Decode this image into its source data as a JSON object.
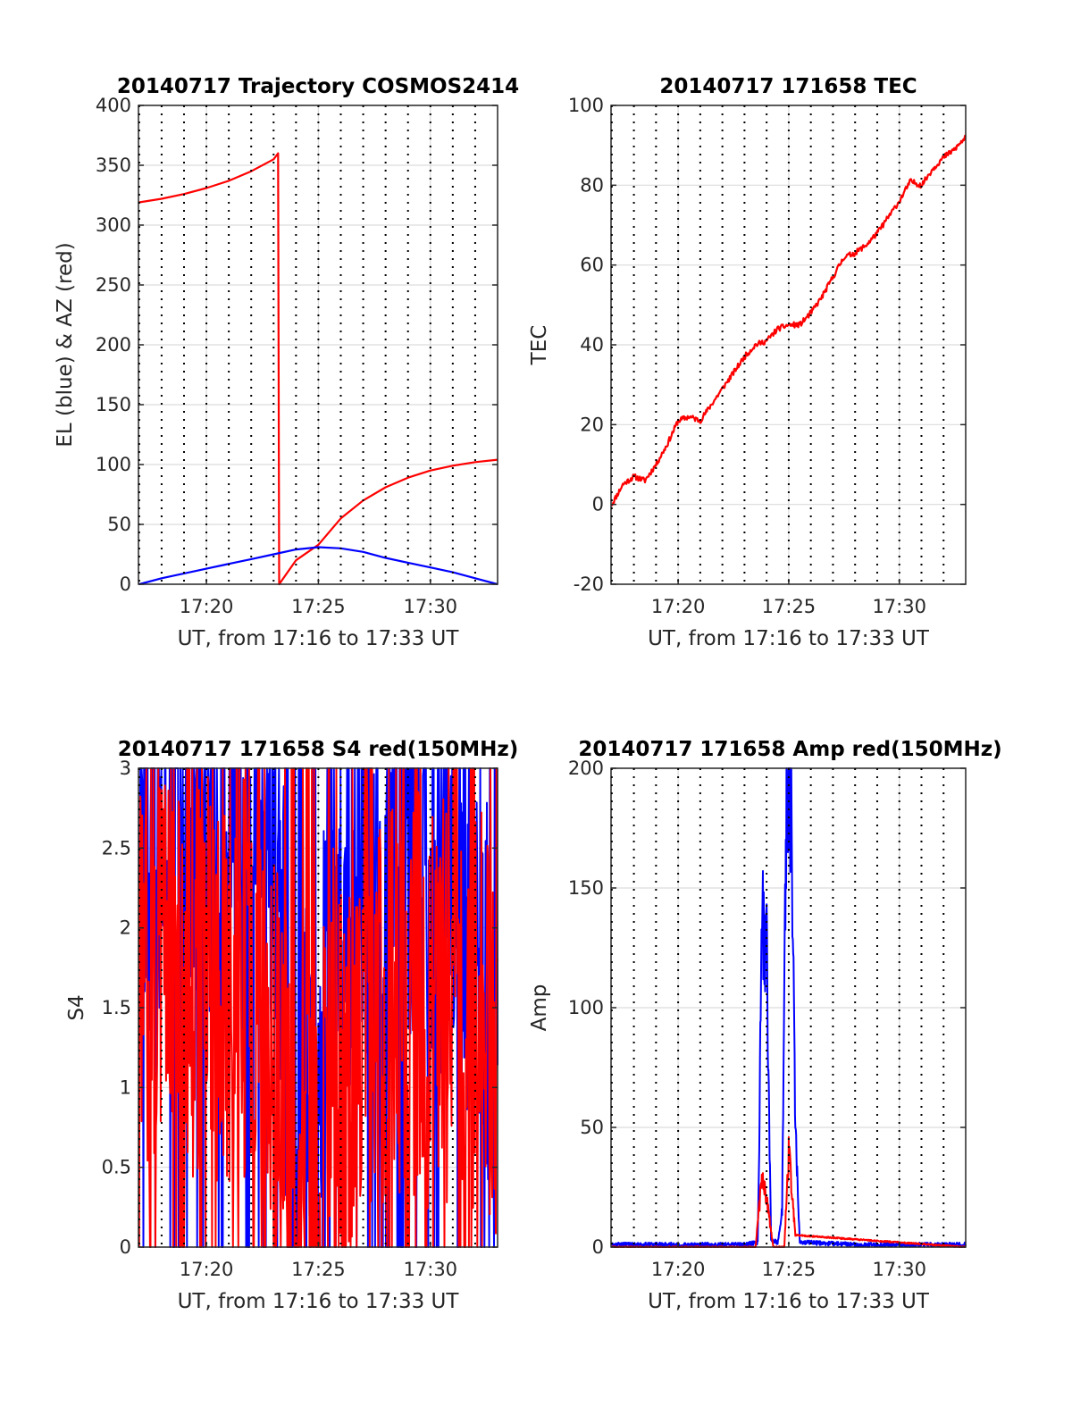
{
  "chart_data": [
    {
      "type": "line",
      "title": "20140717 Trajectory COSMOS2414",
      "xlabel": "UT, from 17:16 to 17:33 UT",
      "ylabel": "EL (blue) & AZ (red)",
      "xlim": [
        "17:16:58",
        "17:33:00"
      ],
      "ylim": [
        0,
        400
      ],
      "xticks": [
        "17:20",
        "17:25",
        "17:30"
      ],
      "yticks": [
        0,
        50,
        100,
        150,
        200,
        250,
        300,
        350,
        400
      ],
      "grid": true,
      "series": [
        {
          "color": "#ff0000",
          "x": [
            "17:17",
            "17:18",
            "17:19",
            "17:20",
            "17:21",
            "17:22",
            "17:23",
            "17:23.2",
            "17:23.25",
            "17:24",
            "17:25",
            "17:26",
            "17:27",
            "17:28",
            "17:29",
            "17:30",
            "17:31",
            "17:32",
            "17:33"
          ],
          "y": [
            319,
            322,
            326,
            331,
            337,
            345,
            355,
            360,
            0,
            20,
            33,
            55,
            70,
            81,
            89,
            95,
            99,
            102,
            104
          ]
        },
        {
          "color": "#0000ff",
          "x": [
            "17:17",
            "17:18",
            "17:19",
            "17:20",
            "17:21",
            "17:22",
            "17:23",
            "17:24",
            "17:25",
            "17:26",
            "17:27",
            "17:28",
            "17:29",
            "17:30",
            "17:31",
            "17:32",
            "17:33"
          ],
          "y": [
            0,
            5,
            9,
            13,
            17,
            21,
            25,
            29,
            31,
            30,
            27,
            22,
            18,
            14,
            10,
            5,
            0
          ]
        }
      ]
    },
    {
      "type": "line",
      "title": "20140717 171658 TEC",
      "xlabel": "UT, from 17:16 to 17:33 UT",
      "ylabel": "TEC",
      "xlim": [
        "17:16:58",
        "17:33:00"
      ],
      "ylim": [
        -20,
        100
      ],
      "xticks": [
        "17:20",
        "17:25",
        "17:30"
      ],
      "yticks": [
        -20,
        0,
        20,
        40,
        60,
        80,
        100
      ],
      "grid": true,
      "series": [
        {
          "color": "#ff0000",
          "x": [
            "17:17",
            "17:17.5",
            "17:18",
            "17:18.5",
            "17:19",
            "17:19.5",
            "17:20",
            "17:20.5",
            "17:21",
            "17:21.5",
            "17:22",
            "17:22.5",
            "17:23",
            "17:23.5",
            "17:24",
            "17:24.5",
            "17:25",
            "17:25.5",
            "17:26",
            "17:26.5",
            "17:27",
            "17:27.5",
            "17:28",
            "17:28.5",
            "17:29",
            "17:29.5",
            "17:30",
            "17:30.5",
            "17:31",
            "17:31.5",
            "17:32",
            "17:32.5",
            "17:33"
          ],
          "y": [
            0,
            5,
            7,
            6,
            10,
            15,
            21,
            22,
            21,
            25,
            29,
            33,
            37,
            40,
            41,
            44,
            45,
            45,
            48,
            52,
            57,
            62,
            63,
            65,
            68,
            72,
            76,
            81,
            80,
            84,
            87,
            89,
            92
          ]
        }
      ]
    },
    {
      "type": "line",
      "title": "20140717 171658 S4 red(150MHz)",
      "xlabel": "UT, from 17:16 to 17:33 UT",
      "ylabel": "S4",
      "xlim": [
        "17:16:58",
        "17:33:00"
      ],
      "ylim": [
        0,
        3
      ],
      "xticks": [
        "17:20",
        "17:25",
        "17:30"
      ],
      "yticks": [
        0,
        0.5,
        1,
        1.5,
        2,
        2.5,
        3
      ],
      "grid": true,
      "series": [
        {
          "color": "#0000ff",
          "x": [
            "17:17",
            "17:18",
            "17:19",
            "17:20",
            "17:21",
            "17:22",
            "17:23",
            "17:23.5",
            "17:24",
            "17:24.5",
            "17:25",
            "17:25.5",
            "17:26",
            "17:27",
            "17:28",
            "17:29",
            "17:30",
            "17:31",
            "17:32",
            "17:33"
          ],
          "y": [
            2.7,
            2.6,
            2.5,
            2.4,
            2.4,
            2.6,
            2.5,
            1.5,
            0.1,
            1.0,
            0.2,
            2.8,
            1.5,
            2.5,
            2.0,
            2.6,
            1.8,
            2.4,
            2.0,
            1.4
          ]
        },
        {
          "color": "#ff0000",
          "x": [
            "17:17",
            "17:18",
            "17:19",
            "17:20",
            "17:21",
            "17:22",
            "17:23",
            "17:23.5",
            "17:24",
            "17:24.5",
            "17:25",
            "17:25.5",
            "17:26",
            "17:27",
            "17:28",
            "17:29",
            "17:30",
            "17:31",
            "17:32",
            "17:33"
          ],
          "y": [
            1.8,
            1.7,
            1.6,
            1.7,
            1.5,
            1.8,
            1.4,
            1.2,
            0.2,
            0.8,
            0.2,
            1.5,
            1.0,
            1.6,
            1.4,
            1.7,
            1.4,
            1.6,
            1.5,
            1.3
          ]
        }
      ]
    },
    {
      "type": "line",
      "title": "20140717 171658 Amp red(150MHz)",
      "xlabel": "UT, from 17:16 to 17:33 UT",
      "ylabel": "Amp",
      "xlim": [
        "17:16:58",
        "17:33:00"
      ],
      "ylim": [
        0,
        200
      ],
      "xticks": [
        "17:20",
        "17:25",
        "17:30"
      ],
      "yticks": [
        0,
        50,
        100,
        150,
        200
      ],
      "grid": true,
      "series": [
        {
          "color": "#0000ff",
          "x": [
            "17:17",
            "17:20",
            "17:23",
            "17:23.6",
            "17:23.8",
            "17:24.0",
            "17:24.2",
            "17:24.5",
            "17:24.7",
            "17:24.9",
            "17:25.1",
            "17:25.3",
            "17:25.5",
            "17:28",
            "17:30",
            "17:33"
          ],
          "y": [
            1,
            1,
            1,
            2,
            138,
            125,
            3,
            2,
            15,
            192,
            185,
            50,
            2,
            1,
            1,
            1
          ]
        },
        {
          "color": "#ff0000",
          "x": [
            "17:17",
            "17:23.5",
            "17:23.8",
            "17:24.0",
            "17:24.3",
            "17:24.8",
            "17:25.0",
            "17:25.3",
            "17:33"
          ],
          "y": [
            0,
            0,
            30,
            20,
            0,
            0,
            40,
            5,
            0
          ]
        }
      ]
    }
  ]
}
